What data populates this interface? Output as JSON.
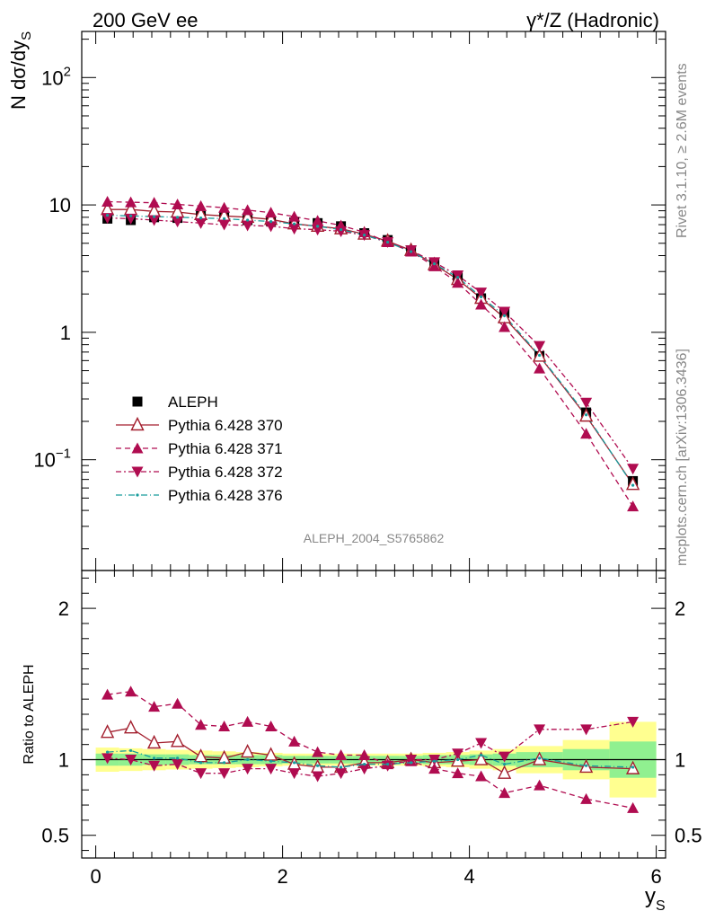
{
  "header": {
    "left": "200 GeV ee",
    "right": "γ*/Z (Hadronic)"
  },
  "side_text": {
    "rivet": "Rivet 3.1.10, ≥ 2.6M events",
    "mcplots": "mcplots.cern.ch [arXiv:1306.3436]"
  },
  "watermark": "ALEPH_2004_S5765862",
  "colors": {
    "data": "#000000",
    "p370": "#a31f2e",
    "p371": "#b00c50",
    "p372": "#b00c50",
    "p376": "#179c9c",
    "band_inner": "#90f090",
    "band_outer": "#ffff90"
  },
  "chart_data": [
    {
      "type": "line",
      "panel": "main",
      "xlabel_main": "y",
      "xlabel_sub": "S",
      "ylabel": "N dσ/dy",
      "ylabel_sub": "S",
      "xlim": [
        -0.15,
        6.1
      ],
      "ylim": [
        0.0135,
        230
      ],
      "yscale": "log",
      "yticks": [
        {
          "value": 100,
          "label": "10",
          "sup": "2"
        },
        {
          "value": 10,
          "label": "10",
          "sup": ""
        },
        {
          "value": 1,
          "label": "1",
          "sup": ""
        },
        {
          "value": 0.1,
          "label": "10",
          "sup": "−1"
        }
      ],
      "x": [
        0.125,
        0.375,
        0.625,
        0.875,
        1.125,
        1.375,
        1.625,
        1.875,
        2.125,
        2.375,
        2.625,
        2.875,
        3.125,
        3.375,
        3.625,
        3.875,
        4.125,
        4.375,
        4.75,
        5.25,
        5.75
      ],
      "bin_edges": [
        0,
        0.25,
        0.5,
        0.75,
        1.0,
        1.25,
        1.5,
        1.75,
        2.0,
        2.25,
        2.5,
        2.75,
        3.0,
        3.25,
        3.5,
        3.75,
        4.0,
        4.25,
        4.5,
        5.0,
        5.5,
        6.0
      ],
      "legend": [
        {
          "name": "ALEPH",
          "style": "data"
        },
        {
          "name": "Pythia 6.428 370",
          "style": "p370"
        },
        {
          "name": "Pythia 6.428 371",
          "style": "p371"
        },
        {
          "name": "Pythia 6.428 372",
          "style": "p372"
        },
        {
          "name": "Pythia 6.428 376",
          "style": "p376"
        }
      ],
      "legend_position": "lower-left",
      "series": [
        {
          "name": "ALEPH",
          "values": [
            7.8,
            7.6,
            8.0,
            7.9,
            8.2,
            8.1,
            7.6,
            7.5,
            7.3,
            7.2,
            6.8,
            6.0,
            5.3,
            4.4,
            3.5,
            2.7,
            1.85,
            1.42,
            0.65,
            0.235,
            0.068
          ]
        },
        {
          "name": "Pythia 6.428 370",
          "values": [
            9.2,
            9.2,
            8.9,
            8.8,
            8.4,
            8.2,
            8.0,
            7.7,
            7.1,
            6.8,
            6.5,
            5.9,
            5.2,
            4.4,
            3.4,
            2.6,
            1.85,
            1.3,
            0.65,
            0.22,
            0.064
          ]
        },
        {
          "name": "Pythia 6.428 371",
          "values": [
            10.6,
            10.5,
            10.4,
            10.1,
            9.8,
            9.5,
            9.1,
            8.7,
            8.1,
            7.5,
            6.9,
            6.1,
            5.1,
            4.3,
            3.3,
            2.45,
            1.65,
            1.1,
            0.52,
            0.16,
            0.043
          ]
        },
        {
          "name": "Pythia 6.428 372",
          "values": [
            7.9,
            7.8,
            7.6,
            7.4,
            7.2,
            7.0,
            6.9,
            6.8,
            6.5,
            6.4,
            6.2,
            5.8,
            5.1,
            4.4,
            3.55,
            2.8,
            2.05,
            1.45,
            0.78,
            0.28,
            0.085
          ]
        },
        {
          "name": "Pythia 6.428 376",
          "values": [
            8.3,
            8.2,
            8.1,
            8.0,
            7.9,
            7.8,
            7.6,
            7.4,
            7.1,
            6.8,
            6.4,
            5.8,
            5.1,
            4.3,
            3.45,
            2.7,
            1.9,
            1.35,
            0.66,
            0.225,
            0.063
          ]
        }
      ]
    },
    {
      "type": "line",
      "panel": "ratio",
      "ylabel": "Ratio to ALEPH",
      "xlim": [
        -0.15,
        6.1
      ],
      "ylim": [
        0.35,
        2.25
      ],
      "yticks": [
        {
          "value": 2,
          "label": "2"
        },
        {
          "value": 1,
          "label": "1"
        },
        {
          "value": 0.5,
          "label": "0.5"
        }
      ],
      "xticks": [
        {
          "value": 0,
          "label": "0"
        },
        {
          "value": 2,
          "label": "2"
        },
        {
          "value": 4,
          "label": "4"
        },
        {
          "value": 6,
          "label": "6"
        }
      ],
      "bands": {
        "inner_lo": [
          0.96,
          0.96,
          0.965,
          0.965,
          0.97,
          0.97,
          0.97,
          0.97,
          0.975,
          0.975,
          0.975,
          0.975,
          0.975,
          0.975,
          0.97,
          0.97,
          0.965,
          0.96,
          0.95,
          0.93,
          0.88
        ],
        "inner_hi": [
          1.04,
          1.04,
          1.035,
          1.035,
          1.03,
          1.03,
          1.03,
          1.03,
          1.025,
          1.025,
          1.025,
          1.025,
          1.025,
          1.025,
          1.03,
          1.03,
          1.035,
          1.04,
          1.05,
          1.07,
          1.12
        ],
        "outer_lo": [
          0.92,
          0.925,
          0.93,
          0.935,
          0.94,
          0.945,
          0.95,
          0.955,
          0.96,
          0.96,
          0.96,
          0.96,
          0.96,
          0.96,
          0.955,
          0.95,
          0.94,
          0.93,
          0.91,
          0.87,
          0.75
        ],
        "outer_hi": [
          1.08,
          1.075,
          1.07,
          1.065,
          1.06,
          1.055,
          1.05,
          1.045,
          1.04,
          1.04,
          1.04,
          1.04,
          1.04,
          1.04,
          1.045,
          1.05,
          1.06,
          1.07,
          1.09,
          1.13,
          1.25
        ]
      },
      "series": [
        {
          "name": "Pythia 6.428 370",
          "values": [
            1.18,
            1.21,
            1.11,
            1.12,
            1.02,
            1.01,
            1.05,
            1.03,
            0.97,
            0.95,
            0.95,
            0.98,
            0.98,
            1.0,
            0.98,
            0.99,
            1.0,
            0.91,
            1.0,
            0.95,
            0.94
          ]
        },
        {
          "name": "Pythia 6.428 371",
          "values": [
            1.43,
            1.45,
            1.35,
            1.37,
            1.23,
            1.22,
            1.25,
            1.22,
            1.12,
            1.05,
            1.03,
            1.03,
            0.97,
            0.99,
            0.94,
            0.91,
            0.89,
            0.78,
            0.83,
            0.74,
            0.68
          ]
        },
        {
          "name": "Pythia 6.428 372",
          "values": [
            1.01,
            1.0,
            0.96,
            0.97,
            0.91,
            0.91,
            0.94,
            0.94,
            0.91,
            0.89,
            0.91,
            0.94,
            0.96,
            1.0,
            1.0,
            1.04,
            1.11,
            1.02,
            1.2,
            1.2,
            1.25
          ]
        },
        {
          "name": "Pythia 6.428 376",
          "values": [
            1.05,
            1.06,
            1.01,
            1.01,
            0.98,
            0.98,
            1.0,
            0.99,
            0.98,
            0.96,
            0.95,
            0.97,
            0.97,
            0.98,
            0.99,
            1.0,
            1.03,
            0.97,
            1.01,
            0.96,
            0.95
          ]
        }
      ]
    }
  ]
}
